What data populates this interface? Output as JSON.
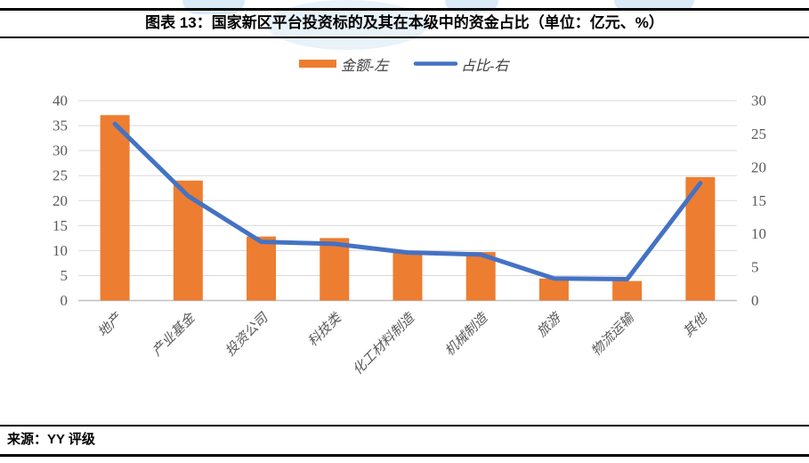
{
  "header": {
    "title": "图表 13：国家新区平台投资标的及其在本级中的资金占比（单位：亿元、%）"
  },
  "footer": {
    "source": "来源：YY 评级"
  },
  "watermark": {
    "color": "#bcd9ee"
  },
  "chart_data": {
    "type": "bar",
    "subtype": "bar-line-combo",
    "title": "国家新区平台投资标的及其在本级中的资金占比",
    "units": "亿元、%",
    "categories": [
      "地产",
      "产业基金",
      "投资公司",
      "科技类",
      "化工材料制造",
      "机械制造",
      "旅游",
      "物流运输",
      "其他"
    ],
    "series": [
      {
        "name": "金额-左",
        "type": "bar",
        "axis": "left",
        "color": "#ED7D31",
        "values": [
          37.1,
          24.0,
          12.8,
          12.5,
          9.6,
          9.7,
          4.4,
          3.9,
          24.7
        ]
      },
      {
        "name": "占比-右",
        "type": "line",
        "axis": "right",
        "color": "#4472C4",
        "values": [
          26.5,
          15.7,
          8.8,
          8.5,
          7.2,
          6.9,
          3.3,
          3.2,
          17.6
        ]
      }
    ],
    "left_axis": {
      "min": 0,
      "max": 40,
      "step": 5,
      "ticks": [
        "0",
        "5",
        "10",
        "15",
        "20",
        "25",
        "30",
        "35",
        "40"
      ]
    },
    "right_axis": {
      "min": 0,
      "max": 30,
      "step": 5,
      "ticks": [
        "0",
        "5",
        "10",
        "15",
        "20",
        "25",
        "30"
      ]
    },
    "legend_position": "top",
    "grid": true,
    "gridline_color": "#D9D9D9",
    "axis_line_color": "#BFBFBF",
    "tick_label_color": "#595959",
    "category_label_color": "#595959"
  }
}
